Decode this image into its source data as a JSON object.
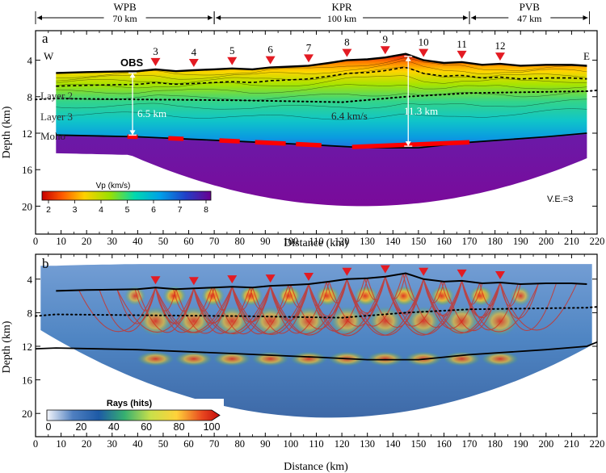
{
  "regions": [
    {
      "label": "WPB",
      "width": "70 km",
      "x0": 0,
      "x1": 70
    },
    {
      "label": "KPR",
      "width": "100 km",
      "x0": 70,
      "x1": 170
    },
    {
      "label": "PVB",
      "width": "47 km",
      "x0": 170,
      "x1": 217
    }
  ],
  "panel_a": {
    "letter": "a",
    "west": "W",
    "east": "E",
    "obs_label": "OBS",
    "ylabel": "Depth (km)",
    "xlabel": "Distance (km)",
    "layer2": "Layer 2",
    "layer3": "Layer 3",
    "moho": "Moho",
    "thickness_west": "6.5 km",
    "thickness_east": "11.3 km",
    "velocity_note": "6.4 km/s",
    "ve": "V.E.=3",
    "colorbar_title": "Vp (km/s)",
    "colorbar_ticks": [
      "2",
      "3",
      "4",
      "5",
      "6",
      "7",
      "8"
    ]
  },
  "panel_b": {
    "letter": "b",
    "ylabel": "Depth (km)",
    "xlabel": "Distance (km)",
    "colorbar_title": "Rays (hits)",
    "colorbar_ticks": [
      "0",
      "20",
      "40",
      "60",
      "80",
      "100"
    ]
  },
  "obs_stations": [
    {
      "id": "3",
      "x": 47
    },
    {
      "id": "4",
      "x": 62
    },
    {
      "id": "5",
      "x": 77
    },
    {
      "id": "6",
      "x": 92
    },
    {
      "id": "7",
      "x": 107
    },
    {
      "id": "8",
      "x": 122
    },
    {
      "id": "9",
      "x": 137
    },
    {
      "id": "10",
      "x": 152
    },
    {
      "id": "11",
      "x": 167
    },
    {
      "id": "12",
      "x": 182
    }
  ],
  "x_ticks": [
    "0",
    "10",
    "20",
    "30",
    "40",
    "50",
    "60",
    "70",
    "80",
    "90",
    "100",
    "110",
    "120",
    "130",
    "140",
    "150",
    "160",
    "170",
    "180",
    "190",
    "200",
    "210",
    "220"
  ],
  "y_ticks": [
    "4",
    "8",
    "12",
    "16",
    "20"
  ],
  "colors": {
    "station": "#e31b23",
    "moho_reflector": "#ff0000",
    "background_panel_b": "#1f5fa8"
  },
  "chart_data": [
    {
      "type": "heatmap",
      "title": "a",
      "xlabel": "Distance (km)",
      "ylabel": "Depth (km)",
      "xlim": [
        0,
        220
      ],
      "ylim": [
        22,
        2
      ],
      "colorbar": {
        "label": "Vp (km/s)",
        "range": [
          2,
          8
        ]
      },
      "seafloor": {
        "x": [
          8,
          20,
          40,
          47,
          55,
          62,
          70,
          77,
          85,
          92,
          100,
          107,
          115,
          122,
          130,
          137,
          145,
          152,
          160,
          167,
          175,
          182,
          190,
          200,
          210,
          216
        ],
        "depth": [
          5.4,
          5.3,
          5.2,
          5.0,
          5.2,
          5.1,
          5.0,
          4.9,
          5.0,
          4.8,
          4.7,
          4.6,
          4.3,
          4.0,
          3.9,
          3.7,
          3.3,
          4.0,
          4.3,
          4.2,
          4.5,
          4.4,
          4.6,
          4.5,
          4.5,
          4.6
        ]
      },
      "layer3_top": {
        "x": [
          8,
          40,
          80,
          120,
          145,
          170,
          216
        ],
        "depth": [
          8.2,
          8.3,
          8.4,
          8.6,
          8.0,
          7.6,
          7.4
        ]
      },
      "moho": {
        "x": [
          8,
          40,
          80,
          110,
          130,
          150,
          170,
          200,
          216
        ],
        "depth": [
          12.2,
          12.4,
          12.9,
          13.3,
          13.6,
          13.6,
          13.0,
          12.4,
          12.0
        ]
      },
      "crustal_thickness": [
        {
          "x": 38,
          "value_km": 6.5
        },
        {
          "x": 146,
          "value_km": 11.3
        }
      ],
      "moho_reflectors": [
        [
          36,
          40
        ],
        [
          52,
          58
        ],
        [
          72,
          80
        ],
        [
          86,
          98
        ],
        [
          102,
          112
        ],
        [
          124,
          170
        ]
      ]
    },
    {
      "type": "heatmap",
      "title": "b",
      "xlabel": "Distance (km)",
      "ylabel": "Depth (km)",
      "xlim": [
        0,
        220
      ],
      "ylim": [
        22,
        2
      ],
      "colorbar": {
        "label": "Rays (hits)",
        "range": [
          0,
          100
        ]
      }
    }
  ]
}
